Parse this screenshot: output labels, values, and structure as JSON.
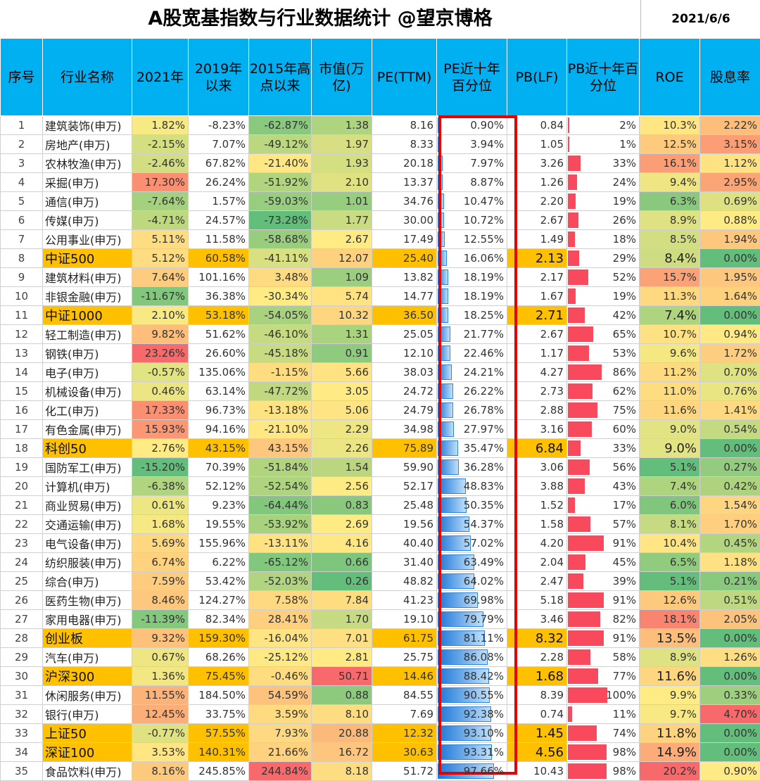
{
  "title": "A股宽基指数与行业数据统计 @望京博格",
  "date": "2021/6/6",
  "headers": [
    "序号",
    "行业名称",
    "2021年",
    "2019年以来",
    "2015年高点以来",
    "市值(万亿)",
    "PE(TTM)",
    "PE近十年百分位",
    "PB(LF)",
    "PB近十年百分位",
    "ROE",
    "股息率"
  ],
  "colors": {
    "header": "#00b0f0",
    "highlight": "#ffc000",
    "pe_bar": "#1e78d8",
    "pb_bar": "#f9495c",
    "frame": "#e60000"
  },
  "rows": [
    {
      "seq": "1",
      "name": "建筑装饰(申万)",
      "y2021": "1.82%",
      "y2019": "-8.23%",
      "y2015": "-62.87%",
      "cap": "1.38",
      "pe": "8.16",
      "pe_pct": "0.90%",
      "pb": "0.84",
      "pb_pct": "2%",
      "roe": "10.3%",
      "div": "2.22%",
      "idx": false
    },
    {
      "seq": "2",
      "name": "房地产(申万)",
      "y2021": "-2.15%",
      "y2019": "7.07%",
      "y2015": "-49.12%",
      "cap": "1.97",
      "pe": "8.33",
      "pe_pct": "3.94%",
      "pb": "1.05",
      "pb_pct": "1%",
      "roe": "12.5%",
      "div": "3.15%",
      "idx": false
    },
    {
      "seq": "3",
      "name": "农林牧渔(申万)",
      "y2021": "-2.46%",
      "y2019": "67.82%",
      "y2015": "-21.40%",
      "cap": "1.93",
      "pe": "20.18",
      "pe_pct": "7.97%",
      "pb": "3.26",
      "pb_pct": "33%",
      "roe": "16.1%",
      "div": "1.12%",
      "idx": false
    },
    {
      "seq": "4",
      "name": "采掘(申万)",
      "y2021": "17.30%",
      "y2019": "26.24%",
      "y2015": "-51.92%",
      "cap": "2.10",
      "pe": "13.37",
      "pe_pct": "8.87%",
      "pb": "1.26",
      "pb_pct": "24%",
      "roe": "9.4%",
      "div": "2.95%",
      "idx": false
    },
    {
      "seq": "5",
      "name": "通信(申万)",
      "y2021": "-7.64%",
      "y2019": "1.57%",
      "y2015": "-59.03%",
      "cap": "1.01",
      "pe": "34.76",
      "pe_pct": "10.47%",
      "pb": "2.20",
      "pb_pct": "19%",
      "roe": "6.3%",
      "div": "0.69%",
      "idx": false
    },
    {
      "seq": "6",
      "name": "传媒(申万)",
      "y2021": "-4.71%",
      "y2019": "24.57%",
      "y2015": "-73.28%",
      "cap": "1.77",
      "pe": "30.00",
      "pe_pct": "10.72%",
      "pb": "2.67",
      "pb_pct": "26%",
      "roe": "8.9%",
      "div": "0.88%",
      "idx": false
    },
    {
      "seq": "7",
      "name": "公用事业(申万)",
      "y2021": "5.11%",
      "y2019": "11.58%",
      "y2015": "-58.68%",
      "cap": "2.67",
      "pe": "17.49",
      "pe_pct": "12.55%",
      "pb": "1.49",
      "pb_pct": "18%",
      "roe": "8.5%",
      "div": "1.94%",
      "idx": false
    },
    {
      "seq": "8",
      "name": "中证500",
      "y2021": "5.12%",
      "y2019": "60.58%",
      "y2015": "-41.11%",
      "cap": "12.07",
      "pe": "25.40",
      "pe_pct": "16.06%",
      "pb": "2.13",
      "pb_pct": "29%",
      "roe": "8.4%",
      "div": "0.00%",
      "idx": true
    },
    {
      "seq": "9",
      "name": "建筑材料(申万)",
      "y2021": "7.64%",
      "y2019": "101.16%",
      "y2015": "3.48%",
      "cap": "1.09",
      "pe": "13.82",
      "pe_pct": "18.19%",
      "pb": "2.17",
      "pb_pct": "52%",
      "roe": "15.7%",
      "div": "1.95%",
      "idx": false
    },
    {
      "seq": "10",
      "name": "非银金融(申万)",
      "y2021": "-11.67%",
      "y2019": "36.38%",
      "y2015": "-30.34%",
      "cap": "5.74",
      "pe": "14.77",
      "pe_pct": "18.19%",
      "pb": "1.67",
      "pb_pct": "19%",
      "roe": "11.3%",
      "div": "1.64%",
      "idx": false
    },
    {
      "seq": "11",
      "name": "中证1000",
      "y2021": "2.10%",
      "y2019": "53.18%",
      "y2015": "-54.05%",
      "cap": "10.32",
      "pe": "36.50",
      "pe_pct": "18.25%",
      "pb": "2.71",
      "pb_pct": "42%",
      "roe": "7.4%",
      "div": "0.00%",
      "idx": true
    },
    {
      "seq": "12",
      "name": "轻工制造(申万)",
      "y2021": "9.82%",
      "y2019": "51.62%",
      "y2015": "-46.10%",
      "cap": "1.31",
      "pe": "25.05",
      "pe_pct": "21.77%",
      "pb": "2.67",
      "pb_pct": "65%",
      "roe": "10.7%",
      "div": "0.94%",
      "idx": false
    },
    {
      "seq": "13",
      "name": "钢铁(申万)",
      "y2021": "23.26%",
      "y2019": "26.60%",
      "y2015": "-45.18%",
      "cap": "0.91",
      "pe": "12.10",
      "pe_pct": "22.46%",
      "pb": "1.17",
      "pb_pct": "53%",
      "roe": "9.6%",
      "div": "1.72%",
      "idx": false
    },
    {
      "seq": "14",
      "name": "电子(申万)",
      "y2021": "-0.57%",
      "y2019": "135.06%",
      "y2015": "-1.15%",
      "cap": "5.66",
      "pe": "38.03",
      "pe_pct": "24.21%",
      "pb": "4.27",
      "pb_pct": "86%",
      "roe": "11.2%",
      "div": "0.70%",
      "idx": false
    },
    {
      "seq": "15",
      "name": "机械设备(申万)",
      "y2021": "0.46%",
      "y2019": "63.14%",
      "y2015": "-47.72%",
      "cap": "3.05",
      "pe": "24.72",
      "pe_pct": "26.22%",
      "pb": "2.73",
      "pb_pct": "62%",
      "roe": "11.0%",
      "div": "0.76%",
      "idx": false
    },
    {
      "seq": "16",
      "name": "化工(申万)",
      "y2021": "17.33%",
      "y2019": "96.73%",
      "y2015": "-13.18%",
      "cap": "5.06",
      "pe": "24.79",
      "pe_pct": "26.78%",
      "pb": "2.88",
      "pb_pct": "75%",
      "roe": "11.6%",
      "div": "1.41%",
      "idx": false
    },
    {
      "seq": "17",
      "name": "有色金属(申万)",
      "y2021": "15.93%",
      "y2019": "94.16%",
      "y2015": "-21.10%",
      "cap": "2.29",
      "pe": "34.98",
      "pe_pct": "27.97%",
      "pb": "3.16",
      "pb_pct": "60%",
      "roe": "9.0%",
      "div": "0.54%",
      "idx": false
    },
    {
      "seq": "18",
      "name": "科创50",
      "y2021": "2.76%",
      "y2019": "43.15%",
      "y2015": "43.15%",
      "cap": "2.26",
      "pe": "75.89",
      "pe_pct": "35.47%",
      "pb": "6.84",
      "pb_pct": "33%",
      "roe": "9.0%",
      "div": "0.00%",
      "idx": true
    },
    {
      "seq": "19",
      "name": "国防军工(申万)",
      "y2021": "-15.20%",
      "y2019": "70.39%",
      "y2015": "-51.84%",
      "cap": "1.54",
      "pe": "59.90",
      "pe_pct": "36.28%",
      "pb": "3.06",
      "pb_pct": "56%",
      "roe": "5.1%",
      "div": "0.27%",
      "idx": false
    },
    {
      "seq": "20",
      "name": "计算机(申万)",
      "y2021": "-6.38%",
      "y2019": "52.12%",
      "y2015": "-52.54%",
      "cap": "2.56",
      "pe": "52.17",
      "pe_pct": "48.83%",
      "pb": "3.88",
      "pb_pct": "43%",
      "roe": "7.4%",
      "div": "0.42%",
      "idx": false
    },
    {
      "seq": "21",
      "name": "商业贸易(申万)",
      "y2021": "0.61%",
      "y2019": "9.23%",
      "y2015": "-64.44%",
      "cap": "0.83",
      "pe": "25.48",
      "pe_pct": "50.35%",
      "pb": "1.52",
      "pb_pct": "17%",
      "roe": "6.0%",
      "div": "1.54%",
      "idx": false
    },
    {
      "seq": "22",
      "name": "交通运输(申万)",
      "y2021": "1.68%",
      "y2019": "19.55%",
      "y2015": "-53.92%",
      "cap": "2.69",
      "pe": "19.56",
      "pe_pct": "54.37%",
      "pb": "1.58",
      "pb_pct": "57%",
      "roe": "8.1%",
      "div": "1.70%",
      "idx": false
    },
    {
      "seq": "23",
      "name": "电气设备(申万)",
      "y2021": "5.69%",
      "y2019": "155.96%",
      "y2015": "-13.11%",
      "cap": "4.16",
      "pe": "40.40",
      "pe_pct": "57.02%",
      "pb": "4.20",
      "pb_pct": "91%",
      "roe": "10.4%",
      "div": "0.45%",
      "idx": false
    },
    {
      "seq": "24",
      "name": "纺织服装(申万)",
      "y2021": "6.74%",
      "y2019": "6.22%",
      "y2015": "-65.12%",
      "cap": "0.66",
      "pe": "31.40",
      "pe_pct": "63.49%",
      "pb": "2.04",
      "pb_pct": "45%",
      "roe": "6.5%",
      "div": "1.18%",
      "idx": false
    },
    {
      "seq": "25",
      "name": "综合(申万)",
      "y2021": "7.59%",
      "y2019": "53.42%",
      "y2015": "-52.03%",
      "cap": "0.26",
      "pe": "48.82",
      "pe_pct": "64.02%",
      "pb": "2.47",
      "pb_pct": "39%",
      "roe": "5.1%",
      "div": "0.21%",
      "idx": false
    },
    {
      "seq": "26",
      "name": "医药生物(申万)",
      "y2021": "8.46%",
      "y2019": "124.27%",
      "y2015": "7.58%",
      "cap": "7.84",
      "pe": "41.23",
      "pe_pct": "69.98%",
      "pb": "5.18",
      "pb_pct": "91%",
      "roe": "12.6%",
      "div": "0.51%",
      "idx": false
    },
    {
      "seq": "27",
      "name": "家用电器(申万)",
      "y2021": "-11.39%",
      "y2019": "82.34%",
      "y2015": "28.41%",
      "cap": "1.70",
      "pe": "19.10",
      "pe_pct": "79.79%",
      "pb": "3.46",
      "pb_pct": "82%",
      "roe": "18.1%",
      "div": "2.05%",
      "idx": false
    },
    {
      "seq": "28",
      "name": "创业板",
      "y2021": "9.32%",
      "y2019": "159.30%",
      "y2015": "-16.04%",
      "cap": "7.01",
      "pe": "61.75",
      "pe_pct": "81.11%",
      "pb": "8.32",
      "pb_pct": "91%",
      "roe": "13.5%",
      "div": "0.00%",
      "idx": true
    },
    {
      "seq": "29",
      "name": "汽车(申万)",
      "y2021": "0.67%",
      "y2019": "68.26%",
      "y2015": "-25.12%",
      "cap": "2.81",
      "pe": "25.75",
      "pe_pct": "86.08%",
      "pb": "2.28",
      "pb_pct": "58%",
      "roe": "8.9%",
      "div": "1.26%",
      "idx": false
    },
    {
      "seq": "30",
      "name": "沪深300",
      "y2021": "1.36%",
      "y2019": "75.45%",
      "y2015": "-0.46%",
      "cap": "50.71",
      "pe": "14.46",
      "pe_pct": "88.42%",
      "pb": "1.68",
      "pb_pct": "77%",
      "roe": "11.6%",
      "div": "0.00%",
      "idx": true
    },
    {
      "seq": "31",
      "name": "休闲服务(申万)",
      "y2021": "11.55%",
      "y2019": "184.50%",
      "y2015": "54.59%",
      "cap": "0.88",
      "pe": "84.55",
      "pe_pct": "90.55%",
      "pb": "8.39",
      "pb_pct": "100%",
      "roe": "9.9%",
      "div": "0.33%",
      "idx": false
    },
    {
      "seq": "32",
      "name": "银行(申万)",
      "y2021": "12.45%",
      "y2019": "33.75%",
      "y2015": "3.59%",
      "cap": "8.10",
      "pe": "7.69",
      "pe_pct": "92.38%",
      "pb": "0.74",
      "pb_pct": "11%",
      "roe": "9.7%",
      "div": "4.70%",
      "idx": false
    },
    {
      "seq": "33",
      "name": "上证50",
      "y2021": "-0.77%",
      "y2019": "57.55%",
      "y2015": "7.93%",
      "cap": "20.88",
      "pe": "12.32",
      "pe_pct": "93.10%",
      "pb": "1.45",
      "pb_pct": "74%",
      "roe": "11.8%",
      "div": "0.00%",
      "idx": true
    },
    {
      "seq": "34",
      "name": "深证100",
      "y2021": "3.53%",
      "y2019": "140.31%",
      "y2015": "21.66%",
      "cap": "16.72",
      "pe": "30.63",
      "pe_pct": "93.31%",
      "pb": "4.56",
      "pb_pct": "98%",
      "roe": "14.9%",
      "div": "0.00%",
      "idx": true
    },
    {
      "seq": "35",
      "name": "食品饮料(申万)",
      "y2021": "8.16%",
      "y2019": "245.85%",
      "y2015": "244.84%",
      "cap": "8.18",
      "pe": "51.72",
      "pe_pct": "97.66%",
      "pb": "10.43",
      "pb_pct": "98%",
      "roe": "20.2%",
      "div": "0.90%",
      "idx": false
    }
  ]
}
